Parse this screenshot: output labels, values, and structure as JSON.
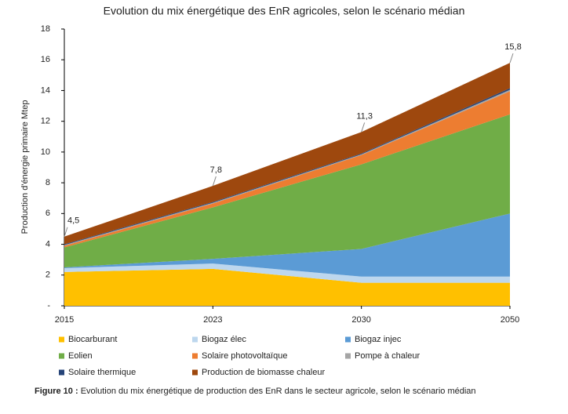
{
  "chart_data": {
    "type": "stacked-area",
    "title": "Evolution du mix énergétique des EnR agricoles, selon le scénario médian",
    "y_label": "Production d'énergie primaire Mtep",
    "categories": [
      "2015",
      "2023",
      "2030",
      "2050"
    ],
    "ylim": [
      0,
      18
    ],
    "yticks": [
      {
        "value": 0,
        "label": "-"
      },
      2,
      4,
      6,
      8,
      10,
      12,
      14,
      16,
      18
    ],
    "series": [
      {
        "name": "Biocarburant",
        "color": "#FFC000",
        "values": [
          2.2,
          2.4,
          1.5,
          1.5
        ]
      },
      {
        "name": "Biogaz élec",
        "color": "#BDD7EE",
        "values": [
          0.25,
          0.35,
          0.4,
          0.4
        ]
      },
      {
        "name": "Biogaz injec",
        "color": "#5B9BD5",
        "values": [
          0.05,
          0.3,
          1.8,
          4.1
        ]
      },
      {
        "name": "Eolien",
        "color": "#70AD47",
        "values": [
          1.3,
          3.35,
          5.5,
          6.45
        ]
      },
      {
        "name": "Solaire photovoltaïque",
        "color": "#ED7D31",
        "values": [
          0.1,
          0.25,
          0.6,
          1.5
        ]
      },
      {
        "name": "Pompe à chaleur",
        "color": "#A5A5A5",
        "values": [
          0.05,
          0.05,
          0.05,
          0.1
        ]
      },
      {
        "name": "Solaire thermique",
        "color": "#264478",
        "values": [
          0.05,
          0.05,
          0.05,
          0.1
        ]
      },
      {
        "name": "Production de biomasse chaleur",
        "color": "#9E480E",
        "values": [
          0.5,
          1.05,
          1.4,
          1.65
        ]
      }
    ],
    "totals": [
      4.5,
      7.8,
      11.3,
      15.8
    ],
    "total_labels": [
      "4,5",
      "7,8",
      "11,3",
      "15,8"
    ],
    "caption_label": "Figure 10 :",
    "caption_text": "Evolution du mix énergétique de production des EnR dans le secteur agricole, selon le scénario médian"
  }
}
